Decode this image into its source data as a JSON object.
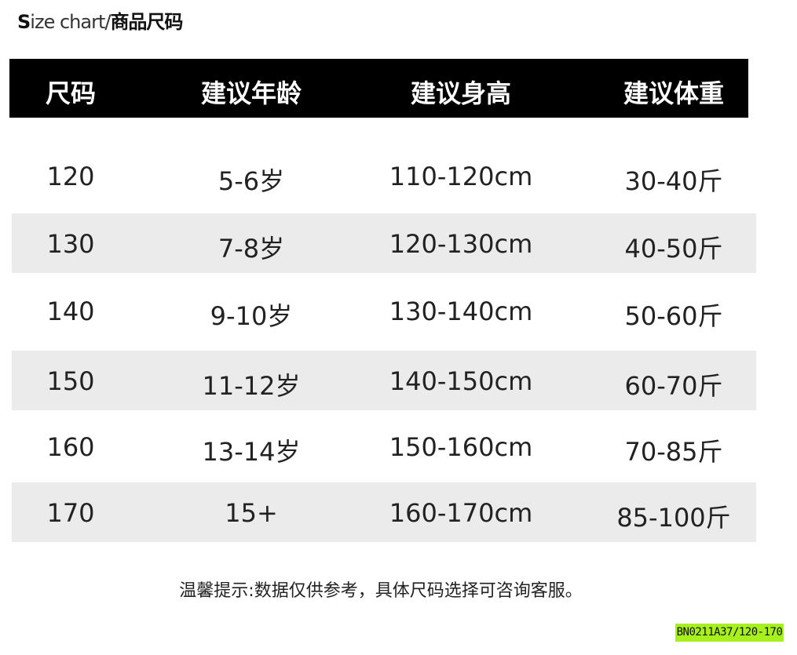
{
  "title": {
    "s": "S",
    "rest": "ize chart/",
    "cn": "商品尺码"
  },
  "headers": [
    "尺码",
    "建议年龄",
    "建议身高",
    "建议体重"
  ],
  "rows": [
    [
      "120",
      "5-6岁",
      "110-120cm",
      "30-40斤"
    ],
    [
      "130",
      "7-8岁",
      "120-130cm",
      "40-50斤"
    ],
    [
      "140",
      "9-10岁",
      "130-140cm",
      "50-60斤"
    ],
    [
      "150",
      "11-12岁",
      "140-150cm",
      "60-70斤"
    ],
    [
      "160",
      "13-14岁",
      "150-160cm",
      "70-85斤"
    ],
    [
      "170",
      "15+",
      "160-170cm",
      "85-100斤"
    ]
  ],
  "note": "温馨提示:数据仅供参考，具体尺码选择可咨询客服。",
  "badge": "BN0211A37/120-170",
  "colors": {
    "header_bg": "#000000",
    "stripe": "#ebebeb",
    "badge": "#a6f01e"
  }
}
